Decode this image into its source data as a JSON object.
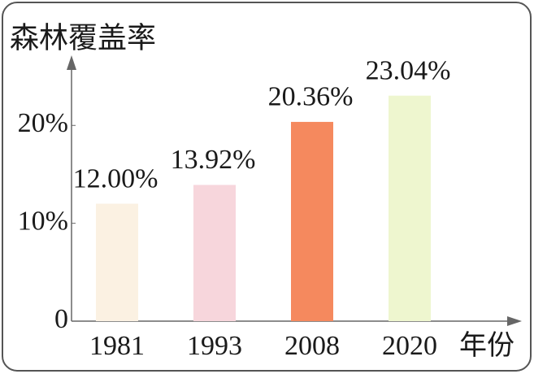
{
  "chart_data": {
    "type": "bar",
    "y_label": "森林覆盖率",
    "x_label": "年份",
    "categories": [
      "1981",
      "1993",
      "2008",
      "2020"
    ],
    "values": [
      12.0,
      13.92,
      20.36,
      23.04
    ],
    "value_labels": [
      "12.00%",
      "13.92%",
      "20.36%",
      "23.04%"
    ],
    "colors": [
      "#fbf1e2",
      "#f7d6dc",
      "#f5895e",
      "#eef6cf"
    ],
    "ylim": [
      0,
      27
    ],
    "yticks": [
      0,
      {
        "value": 10,
        "label": "10%"
      },
      {
        "value": 20,
        "label": "20%"
      }
    ]
  }
}
